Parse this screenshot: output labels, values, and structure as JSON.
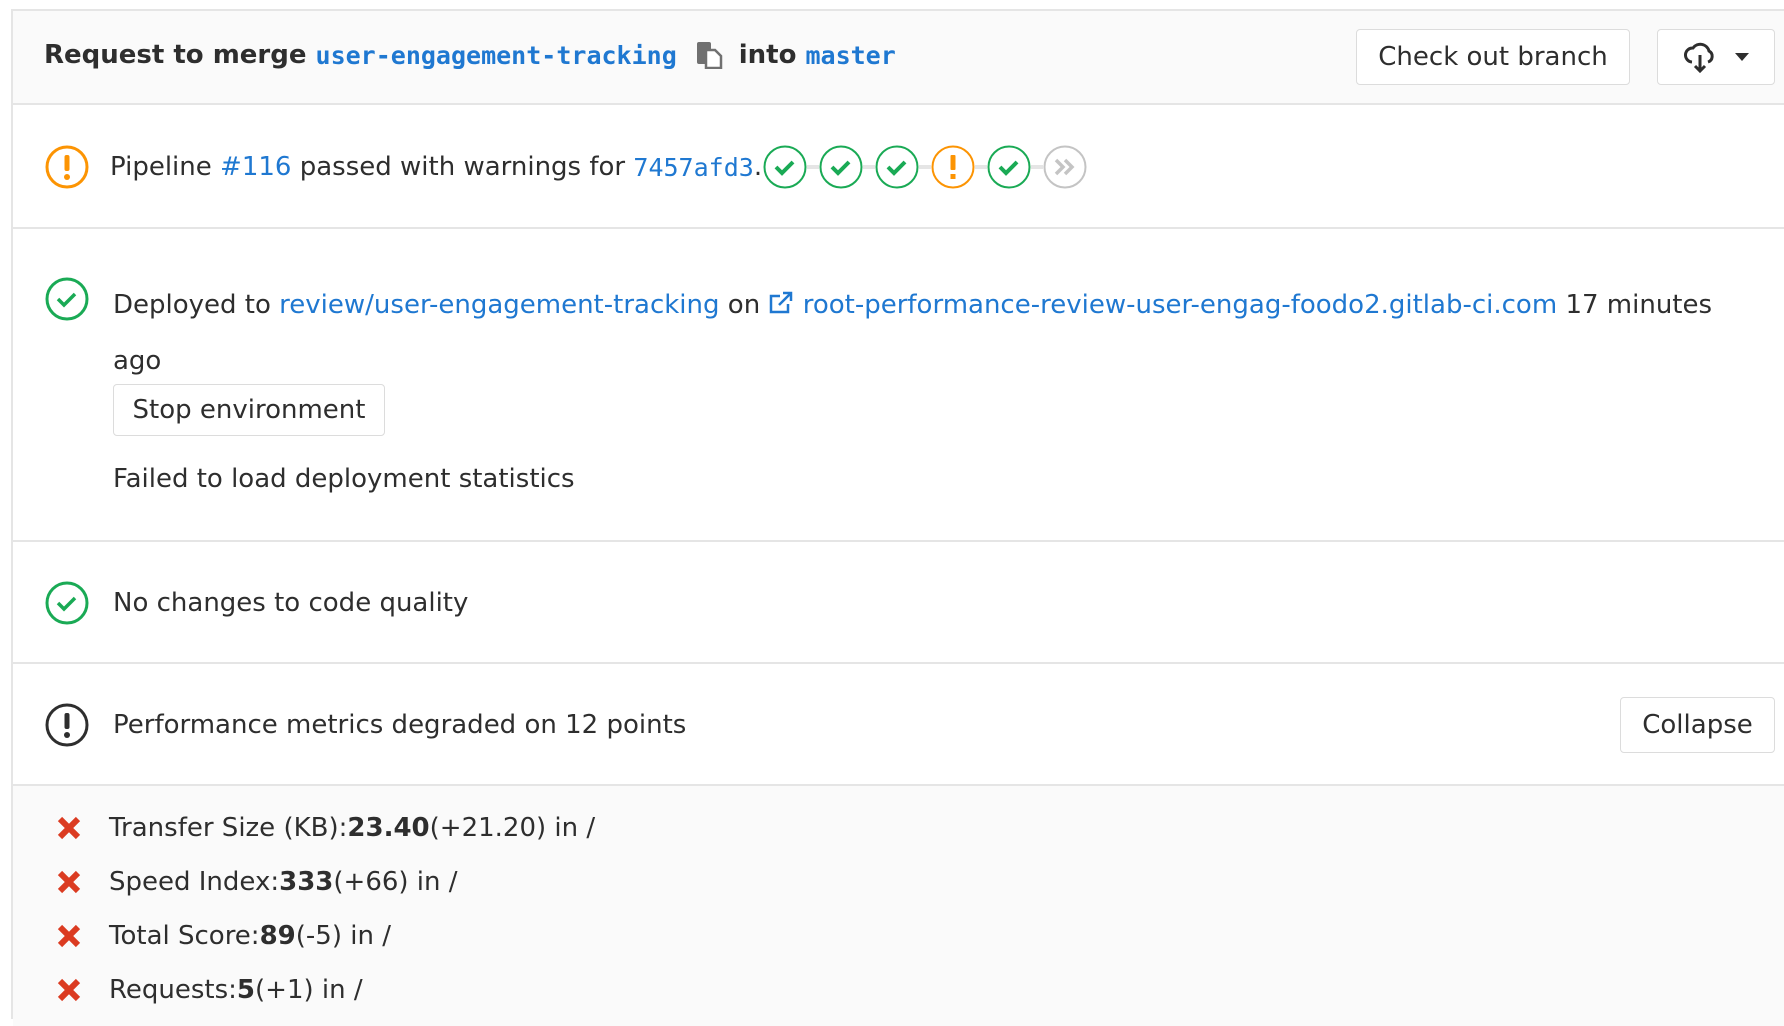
{
  "header": {
    "prefix": "Request to merge",
    "source_branch": "user-engagement-tracking",
    "into": "into",
    "target_branch": "master",
    "checkout_label": "Check out branch",
    "download_icon": "cloud-download-icon"
  },
  "pipeline": {
    "label": "Pipeline",
    "id": "#116",
    "status_text": "passed with warnings for",
    "commit": "7457afd3",
    "period": ".",
    "stages": [
      "success",
      "success",
      "success",
      "warning",
      "success",
      "skipped"
    ]
  },
  "deploy": {
    "prefix": "Deployed to",
    "environment": "review/user-engagement-tracking",
    "on": "on",
    "url": "root-performance-review-user-engag-foodo2.gitlab-ci.com",
    "time": "17 minutes ago",
    "stop_label": "Stop environment",
    "stats_error": "Failed to load deployment statistics"
  },
  "code_quality": {
    "text": "No changes to code quality"
  },
  "performance": {
    "text": "Performance metrics degraded on 12 points",
    "collapse_label": "Collapse",
    "metrics": [
      {
        "name": "Transfer Size (KB):",
        "value": "23.40",
        "delta": "(+21.20) in /"
      },
      {
        "name": "Speed Index:",
        "value": "333",
        "delta": "(+66) in /"
      },
      {
        "name": "Total Score:",
        "value": "89",
        "delta": "(-5) in /"
      },
      {
        "name": "Requests:",
        "value": "5",
        "delta": "(+1) in /"
      }
    ]
  },
  "colors": {
    "success": "#1aaa55",
    "warning": "#fc9403",
    "link": "#1f78d1",
    "danger": "#db3b21",
    "skipped": "#c4c4c4"
  }
}
